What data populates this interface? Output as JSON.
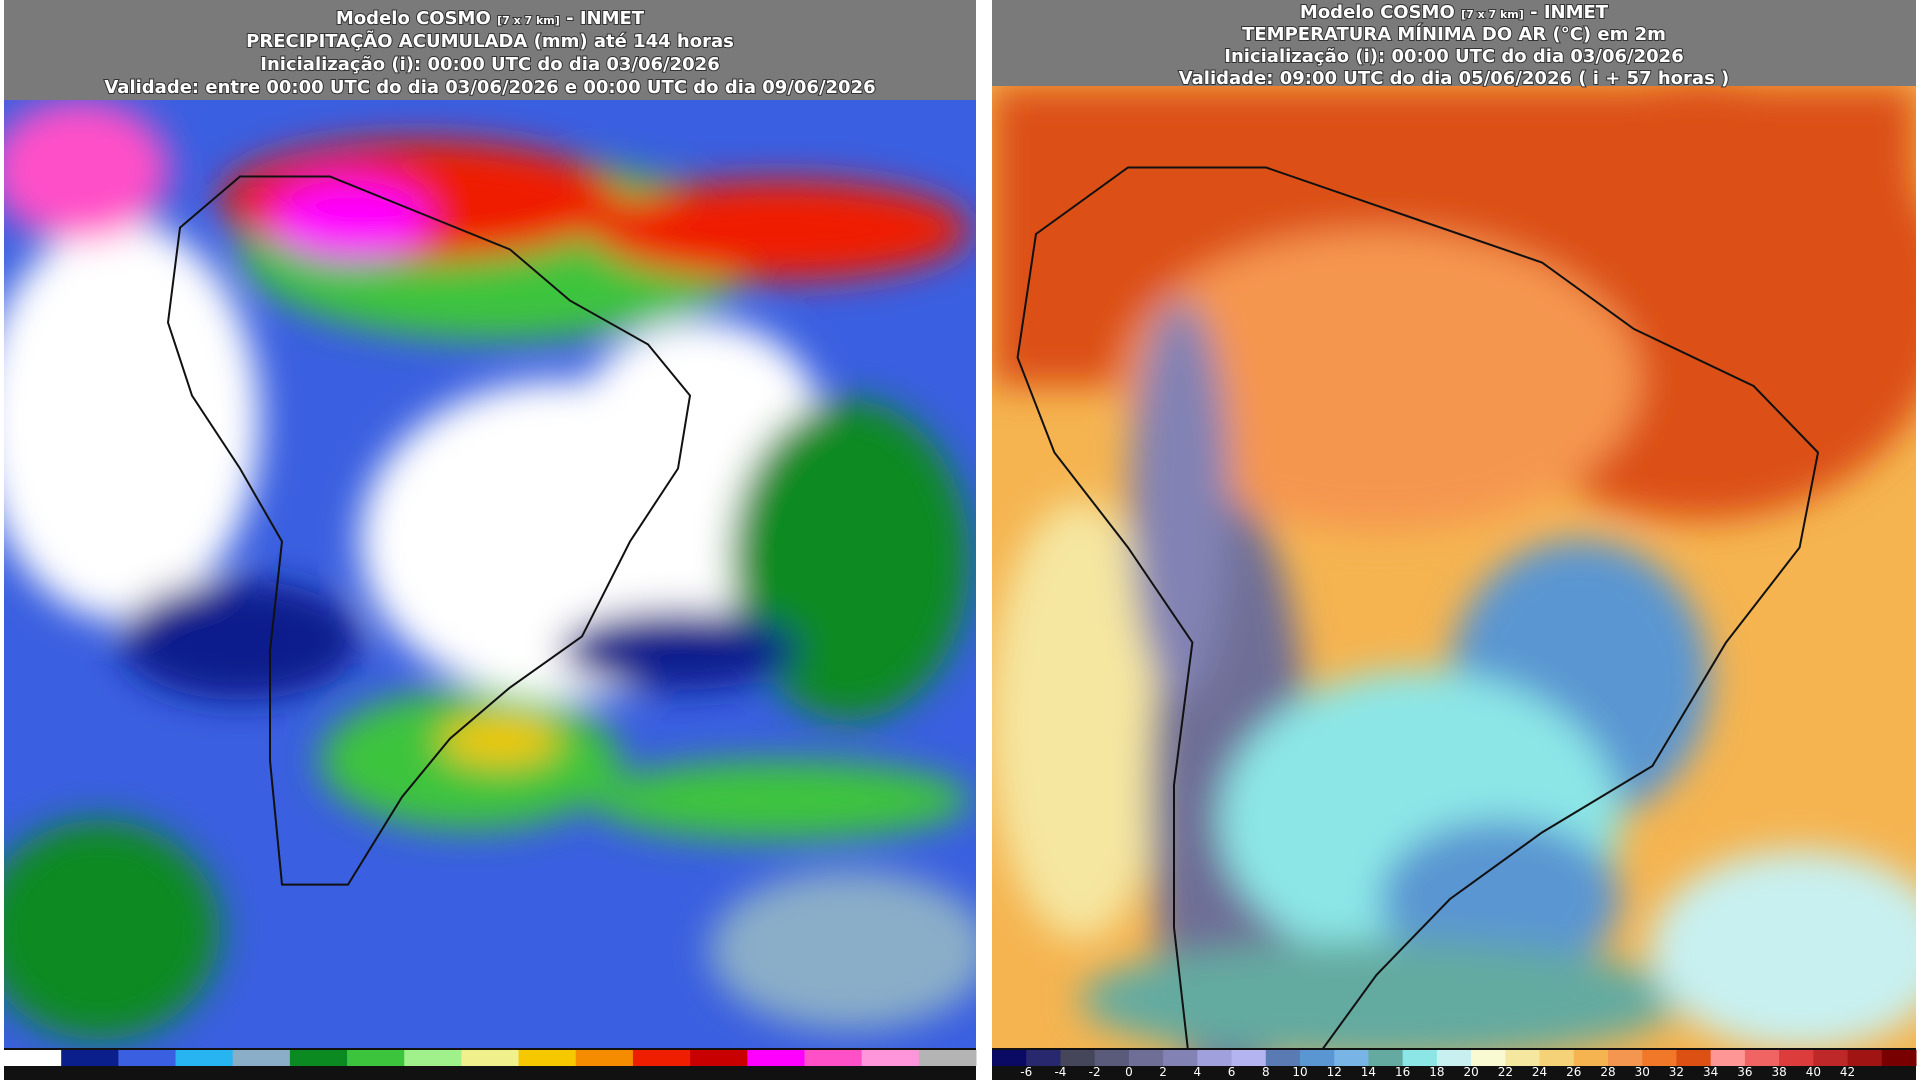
{
  "panels": [
    {
      "model": "Modelo COSMO",
      "resolution": "[7 x 7 km]",
      "source": "- INMET",
      "title": "PRECIPITAÇÃO ACUMULADA (mm) até 144 horas",
      "init": "Inicialização (i): 00:00 UTC do dia 03/06/2026",
      "valid": "Validade: entre 00:00 UTC do dia 03/06/2026 e 00:00 UTC do dia 09/06/2026",
      "colorbar": {
        "colors": [
          "#ffffff",
          "#0a1f8c",
          "#3a5fe0",
          "#28b4f0",
          "#8aaec8",
          "#0a8a20",
          "#3cc43c",
          "#a0f08c",
          "#f0f08c",
          "#f5c800",
          "#f58c00",
          "#f01e00",
          "#c80000",
          "#ff00ff",
          "#ff50c8",
          "#ff96dc",
          "#b4b4b4"
        ]
      }
    },
    {
      "model": "Modelo COSMO",
      "resolution": "[7 x 7 km]",
      "source": "- INMET",
      "title": "TEMPERATURA MÍNIMA DO AR (°C) em 2m",
      "init": "Inicialização (i): 00:00 UTC do dia 03/06/2026",
      "valid": "Validade: 09:00 UTC do dia 05/06/2026 ( i + 57 horas )",
      "colorbar": {
        "colors": [
          "#0a0a64",
          "#28286e",
          "#46465a",
          "#5a5a7a",
          "#6e6e96",
          "#8282b4",
          "#a0a0dc",
          "#b4b4f0",
          "#5a7ab4",
          "#5a96d2",
          "#78b4e6",
          "#64aaa0",
          "#8ce6e6",
          "#c8f0f0",
          "#fafad2",
          "#f5e6a0",
          "#f5d278",
          "#f5b450",
          "#f59650",
          "#f07828",
          "#dc5014",
          "#ff9696",
          "#f06464",
          "#dc3c3c",
          "#be2828",
          "#a01414",
          "#780000"
        ],
        "labels": [
          -6,
          -4,
          -2,
          0,
          2,
          4,
          6,
          8,
          10,
          12,
          14,
          16,
          18,
          20,
          22,
          24,
          26,
          28,
          30,
          32,
          34,
          36,
          38,
          40,
          42
        ]
      }
    }
  ]
}
